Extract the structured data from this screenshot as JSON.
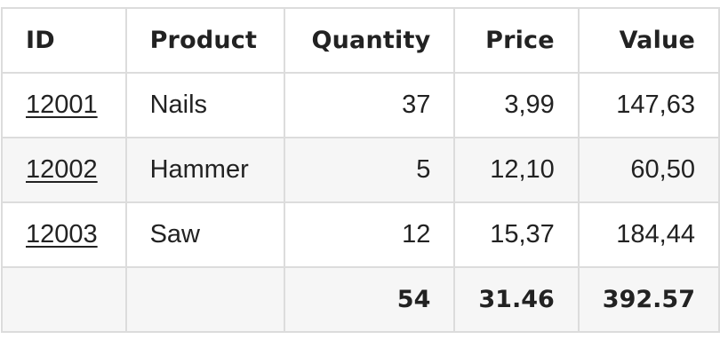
{
  "table": {
    "headers": [
      "ID",
      "Product",
      "Quantity",
      "Price",
      "Value"
    ],
    "rows": [
      {
        "id": "12001",
        "product": "Nails",
        "quantity": "37",
        "price": "3,99",
        "value": "147,63"
      },
      {
        "id": "12002",
        "product": "Hammer",
        "quantity": "5",
        "price": "12,10",
        "value": "60,50"
      },
      {
        "id": "12003",
        "product": "Saw",
        "quantity": "12",
        "price": "15,37",
        "value": "184,44"
      }
    ],
    "totals": {
      "id": "",
      "product": "",
      "quantity": "54",
      "price": "31.46",
      "value": "392.57"
    }
  },
  "colors": {
    "border": "#dcdcdc",
    "stripe": "#f6f6f6",
    "text": "#222222"
  }
}
